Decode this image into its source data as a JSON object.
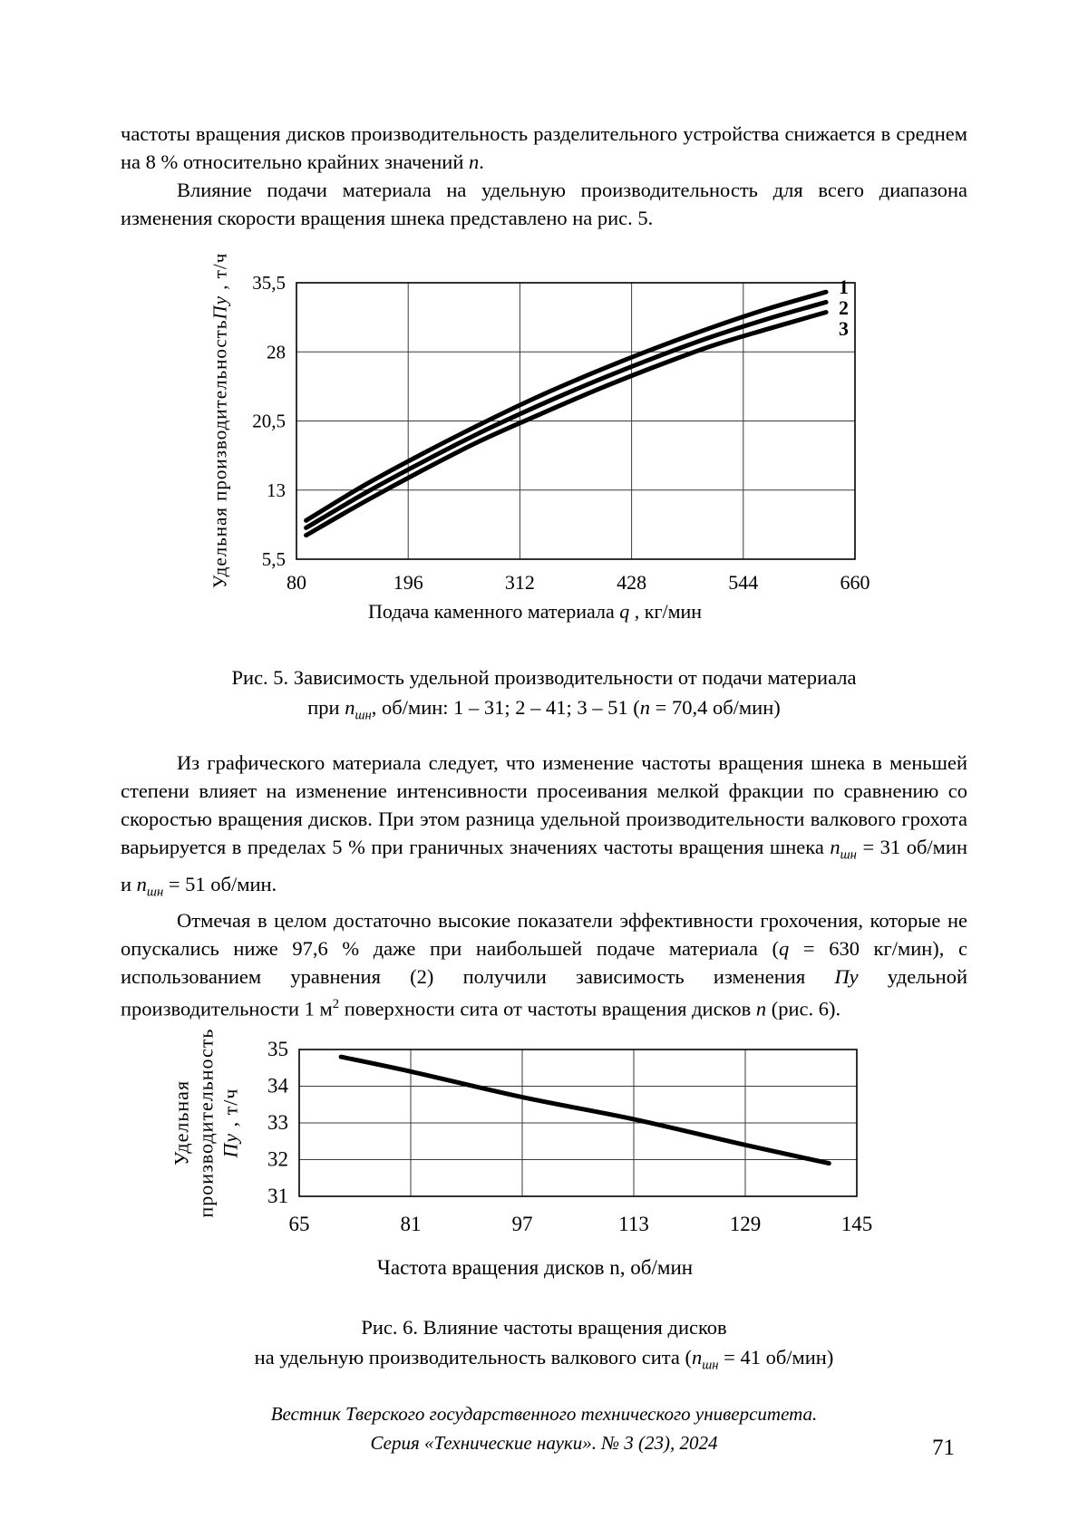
{
  "page_number": "71",
  "paragraphs": {
    "p1": [
      {
        "t": "частоты вращения дисков производительность разделительного устройства снижается в среднем на 8 % относительно крайних значений "
      },
      {
        "t": "n",
        "i": true
      },
      {
        "t": "."
      }
    ],
    "p2": [
      {
        "t": "Влияние подачи материала на удельную производительность для всего диапазона изменения скорости вращения шнека представлено на рис. 5."
      }
    ],
    "p3": [
      {
        "t": "Из графического материала следует, что изменение частоты вращения шнека в меньшей степени влияет на изменение интенсивности просеивания мелкой фракции по сравнению со скоростью вращения дисков. При этом разница удельной производительности валкового грохота варьируется в пределах 5 % при граничных значениях частоты вращения шнека "
      },
      {
        "t": "n",
        "i": true
      },
      {
        "t": "шн",
        "sub": true,
        "i": true
      },
      {
        "t": " = 31 об/мин и "
      },
      {
        "t": "n",
        "i": true
      },
      {
        "t": "шн",
        "sub": true,
        "i": true
      },
      {
        "t": " = 51 об/мин."
      }
    ],
    "p4": [
      {
        "t": "Отмечая в целом достаточно высокие показатели эффективности грохочения, которые не опускались ниже 97,6 % даже при наибольшей подаче материала ("
      },
      {
        "t": "q",
        "i": true
      },
      {
        "t": " = 630 кг/мин), с использованием уравнения (2) получили зависимость изменения "
      },
      {
        "t": "Пу",
        "i": true
      },
      {
        "t": " удельной производительности 1 м"
      },
      {
        "t": "2",
        "sup": true
      },
      {
        "t": " поверхности сита от частоты вращения дисков "
      },
      {
        "t": "n",
        "i": true
      },
      {
        "t": " (рис. 6)."
      }
    ]
  },
  "fig5": {
    "ylabel_parts": [
      {
        "t": "Удельная производительность"
      },
      {
        "t": "Пу",
        "i": true
      },
      {
        "t": " , т/ч"
      }
    ],
    "xlabel_parts": [
      {
        "t": "Подача каменного материала "
      },
      {
        "t": "q",
        "i": true
      },
      {
        "t": " , кг/мин"
      }
    ],
    "caption1": "Рис. 5. Зависимость удельной производительности от подачи материала",
    "caption2_parts": [
      {
        "t": "при "
      },
      {
        "t": "n",
        "i": true
      },
      {
        "t": "шн",
        "sub": true,
        "i": true
      },
      {
        "t": ", об/мин: 1 – 31; 2 – 41; 3 – 51 ("
      },
      {
        "t": "n",
        "i": true
      },
      {
        "t": " = 70,4 об/мин)"
      }
    ]
  },
  "fig6": {
    "ylabel_line1": "Удельная",
    "ylabel_line2": "производительность",
    "ylabel_line3_parts": [
      {
        "t": "Пу",
        "i": true
      },
      {
        "t": " , т/ч"
      }
    ],
    "xlabel": "Частота вращения дисков n, об/мин",
    "caption1": "Рис. 6. Влияние частоты вращения дисков",
    "caption2_parts": [
      {
        "t": "на удельную производительность валкового сита ("
      },
      {
        "t": "n",
        "i": true
      },
      {
        "t": "шн",
        "sub": true,
        "i": true
      },
      {
        "t": " = 41 об/мин)"
      }
    ]
  },
  "footer": {
    "line1": "Вестник Тверского государственного технического университета.",
    "line2": "Серия «Технические науки». № 3 (23), 2024"
  },
  "chart_data": [
    {
      "type": "line",
      "title": "Рис. 5. Зависимость удельной производительности от подачи материала при nшн, об/мин: 1 – 31; 2 – 41; 3 – 51 (n = 70,4 об/мин)",
      "xlabel": "Подача каменного материала q, кг/мин",
      "ylabel": "Удельная производительность Пу, т/ч",
      "xlim": [
        80,
        660
      ],
      "ylim": [
        5.5,
        35.5
      ],
      "xticks": [
        80,
        196,
        312,
        428,
        544,
        660
      ],
      "xtick_labels": [
        "80",
        "196",
        "312",
        "428",
        "544",
        "660"
      ],
      "yticks": [
        5.5,
        13,
        20.5,
        28,
        35.5
      ],
      "ytick_labels": [
        "5,5",
        "13",
        "20,5",
        "28",
        "35,5"
      ],
      "grid": true,
      "legend_position": "line-end-labels",
      "x": [
        90,
        150,
        210,
        270,
        330,
        390,
        450,
        510,
        570,
        630
      ],
      "series": [
        {
          "name": "1",
          "values": [
            9.7,
            13.5,
            16.9,
            20.1,
            23.1,
            25.8,
            28.3,
            30.6,
            32.7,
            34.5
          ]
        },
        {
          "name": "2",
          "values": [
            8.9,
            12.6,
            16.0,
            19.2,
            22.1,
            24.8,
            27.3,
            29.6,
            31.6,
            33.4
          ]
        },
        {
          "name": "3",
          "values": [
            8.1,
            11.7,
            15.1,
            18.3,
            21.1,
            23.8,
            26.3,
            28.6,
            30.5,
            32.3
          ]
        }
      ]
    },
    {
      "type": "line",
      "title": "Рис. 6. Влияние частоты вращения дисков на удельную производительность валкового сита (nшн = 41 об/мин)",
      "xlabel": "Частота вращения дисков n, об/мин",
      "ylabel": "Удельная производительность Пу, т/ч",
      "xlim": [
        65,
        145
      ],
      "ylim": [
        31,
        35
      ],
      "xticks": [
        65,
        81,
        97,
        113,
        129,
        145
      ],
      "xtick_labels": [
        "65",
        "81",
        "97",
        "113",
        "129",
        "145"
      ],
      "yticks": [
        31,
        32,
        33,
        34,
        35
      ],
      "ytick_labels": [
        "31",
        "32",
        "33",
        "34",
        "35"
      ],
      "grid": true,
      "legend_position": "none",
      "x": [
        71,
        81,
        97,
        113,
        129,
        141
      ],
      "series": [
        {
          "name": "",
          "values": [
            34.8,
            34.4,
            33.7,
            33.1,
            32.4,
            31.9
          ]
        }
      ]
    }
  ]
}
